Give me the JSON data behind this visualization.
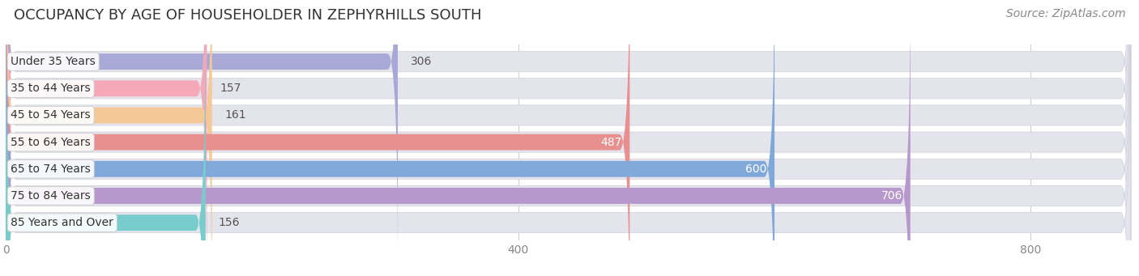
{
  "title": "OCCUPANCY BY AGE OF HOUSEHOLDER IN ZEPHYRHILLS SOUTH",
  "source": "Source: ZipAtlas.com",
  "categories": [
    "Under 35 Years",
    "35 to 44 Years",
    "45 to 54 Years",
    "55 to 64 Years",
    "65 to 74 Years",
    "75 to 84 Years",
    "85 Years and Over"
  ],
  "values": [
    306,
    157,
    161,
    487,
    600,
    706,
    156
  ],
  "bar_colors": [
    "#a9a9d8",
    "#f5a8b8",
    "#f5c898",
    "#e89090",
    "#80a8d8",
    "#b898cc",
    "#78cccc"
  ],
  "bar_bg_color": "#e4e4ec",
  "bar_bg_border_color": "#d0d0dc",
  "xlim_min": 0,
  "xlim_max": 880,
  "title_fontsize": 13,
  "source_fontsize": 10,
  "label_fontsize": 10,
  "value_fontsize": 10,
  "tick_fontsize": 10,
  "xticks": [
    0,
    400,
    800
  ],
  "figure_bg": "#ffffff",
  "axes_bg": "#ffffff"
}
